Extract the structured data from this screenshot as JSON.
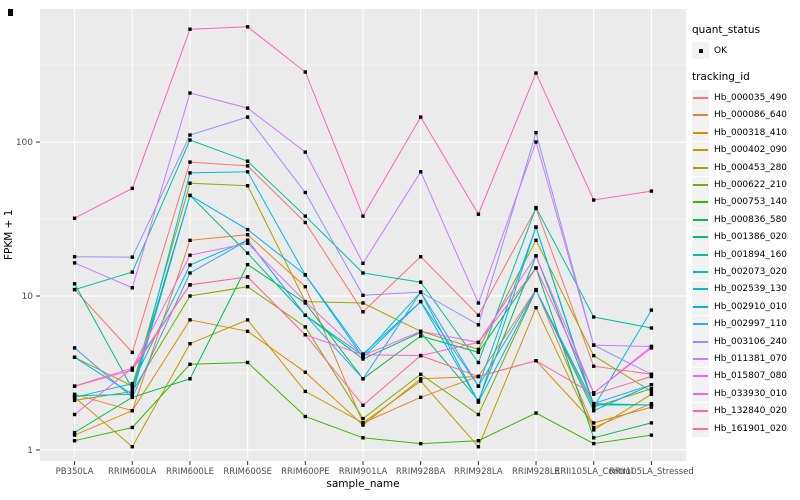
{
  "figure": {
    "axes": {
      "x_title": "sample_name",
      "y_title": "FPKM + 1",
      "y_tick_labels": [
        "1",
        "10",
        "100"
      ]
    },
    "legend": {
      "quant_title": "quant_status",
      "quant_item_label": "OK",
      "tracking_title": "tracking_id"
    },
    "colors": {
      "panel_bg": "#EBEBEB",
      "grid": "#FFFFFF",
      "point": "#000000",
      "axis_text": "#4D4D4D",
      "legend_key_bg": "#F2F2F2"
    }
  },
  "chart_data": {
    "type": "line",
    "title": "",
    "xlabel": "sample_name",
    "ylabel": "FPKM + 1",
    "y_scale": "log10",
    "ylim": [
      1,
      730
    ],
    "y_ticks": [
      1,
      10,
      100
    ],
    "grid": true,
    "legend_position": "right",
    "point_marker": "black square (quant_status = OK)",
    "categories": [
      "PB350LA",
      "RRIM600LA",
      "RRIM600LE",
      "RRIM600SE",
      "RRIM600PE",
      "RRIM901LA",
      "RRIM928BA",
      "RRIM928LA",
      "RRIM928LE",
      "RRII105LA_Control",
      "RRII105LA_Stressed"
    ],
    "series": [
      {
        "name": "Hb_000035_490",
        "color": "#F8766D",
        "values": [
          11,
          4.3,
          74,
          70,
          30,
          7.9,
          18,
          7.5,
          37,
          3.5,
          3.1
        ]
      },
      {
        "name": "Hb_000086_640",
        "color": "#EA8331",
        "values": [
          2.3,
          1.8,
          23,
          25,
          11.5,
          1.5,
          2.2,
          3.0,
          11,
          1.4,
          2.0
        ]
      },
      {
        "name": "Hb_000318_410",
        "color": "#D89000",
        "values": [
          1.25,
          1.8,
          7.0,
          5.9,
          3.2,
          1.45,
          2.9,
          3.0,
          3.8,
          1.5,
          1.9
        ]
      },
      {
        "name": "Hb_000402_090",
        "color": "#C09B00",
        "values": [
          2.2,
          1.05,
          4.9,
          7.0,
          2.4,
          1.5,
          2.8,
          1.05,
          8.4,
          1.35,
          2.3
        ]
      },
      {
        "name": "Hb_000453_280",
        "color": "#A3A500",
        "values": [
          4.0,
          2.6,
          54,
          52,
          9.2,
          9.0,
          5.9,
          4.5,
          23,
          4.1,
          2.4
        ]
      },
      {
        "name": "Hb_000622_210",
        "color": "#7CAE00",
        "values": [
          2.1,
          2.4,
          10,
          11.5,
          6.3,
          1.6,
          3.1,
          1.7,
          10.9,
          1.9,
          2.5
        ]
      },
      {
        "name": "Hb_000753_140",
        "color": "#39B600",
        "values": [
          1.15,
          1.4,
          3.6,
          3.7,
          1.65,
          1.2,
          1.1,
          1.15,
          1.74,
          1.1,
          1.25
        ]
      },
      {
        "name": "Hb_000836_580",
        "color": "#00BB4E",
        "values": [
          1.3,
          2.2,
          2.9,
          16,
          9.0,
          2.9,
          5.5,
          4.3,
          15.2,
          1.2,
          1.5
        ]
      },
      {
        "name": "Hb_001386_020",
        "color": "#00BF7D",
        "values": [
          12,
          2.5,
          45,
          19,
          7.5,
          3.9,
          5.8,
          2.1,
          18.2,
          2.0,
          1.96
        ]
      },
      {
        "name": "Hb_001894_160",
        "color": "#00C1A3",
        "values": [
          11,
          14.3,
          103,
          75,
          33,
          14.1,
          12.3,
          3.7,
          37.5,
          7.3,
          6.2
        ]
      },
      {
        "name": "Hb_002073_020",
        "color": "#00BFC4",
        "values": [
          2.2,
          2.7,
          15.9,
          23,
          7.5,
          4.1,
          10.6,
          2.05,
          28,
          1.96,
          1.96
        ]
      },
      {
        "name": "Hb_002539_130",
        "color": "#00BAE0",
        "values": [
          2.25,
          2.3,
          63,
          64,
          13.7,
          4.2,
          9.2,
          2.6,
          28,
          1.9,
          8.1
        ]
      },
      {
        "name": "Hb_002910_010",
        "color": "#00B0F6",
        "values": [
          4.0,
          2.3,
          45,
          27,
          13.7,
          4.0,
          9.2,
          2.05,
          10.9,
          1.8,
          2.65
        ]
      },
      {
        "name": "Hb_002997_110",
        "color": "#35A2FF",
        "values": [
          4.6,
          2.2,
          14.1,
          23,
          7.5,
          2.9,
          10.6,
          2.6,
          10.9,
          2.0,
          2.65
        ]
      },
      {
        "name": "Hb_003106_240",
        "color": "#9590FF",
        "values": [
          18,
          17.9,
          111,
          145,
          47,
          10.1,
          10.6,
          6.5,
          115,
          4.8,
          3.1
        ]
      },
      {
        "name": "Hb_011381_070",
        "color": "#C77CFF",
        "values": [
          16.4,
          11.3,
          208,
          166,
          86,
          16.3,
          64,
          9.0,
          100,
          4.8,
          4.7
        ]
      },
      {
        "name": "Hb_015807_080",
        "color": "#E76BF3",
        "values": [
          2.6,
          3.4,
          18.4,
          22,
          9.2,
          4.1,
          5.9,
          5.0,
          18.2,
          2.35,
          4.7
        ]
      },
      {
        "name": "Hb_033930_010",
        "color": "#FA62DB",
        "values": [
          1.7,
          3.4,
          11.8,
          13.3,
          5.6,
          4.15,
          4.1,
          5.0,
          15.2,
          2.35,
          4.6
        ]
      },
      {
        "name": "Hb_132840_020",
        "color": "#FF62BC",
        "values": [
          32,
          50,
          540,
          560,
          285,
          33,
          145,
          34,
          280,
          42,
          48
        ]
      },
      {
        "name": "Hb_161901_020",
        "color": "#FF6A98",
        "values": [
          2.6,
          3.3,
          11.8,
          13.3,
          5.6,
          1.95,
          4.1,
          3.0,
          3.8,
          2.3,
          3.0
        ]
      }
    ]
  }
}
